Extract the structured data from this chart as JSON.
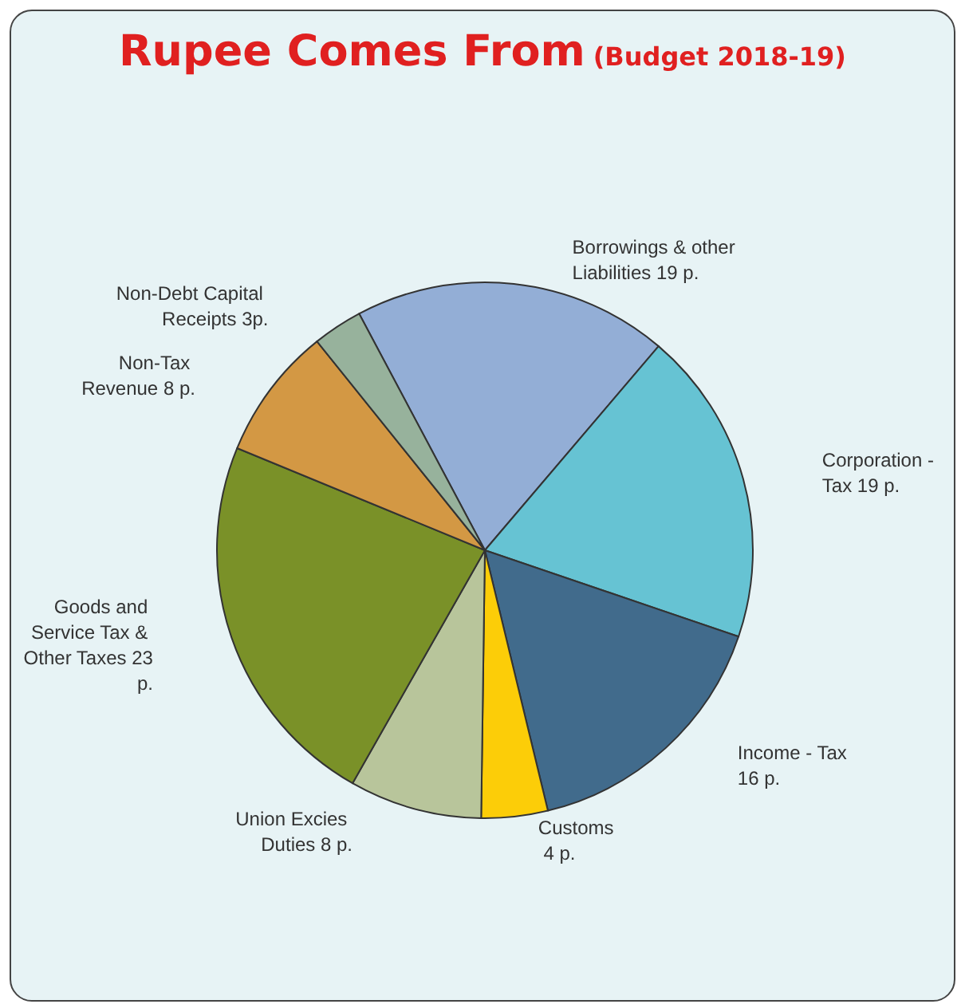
{
  "chart_data": {
    "type": "pie",
    "title": "Rupee Comes From",
    "subtitle": "(Budget 2018-19)",
    "categories": [
      "Borrowings & other Liabilities",
      "Corporation - Tax",
      "Income - Tax",
      "Customs",
      "Union Excies Duties",
      "Goods and Service Tax & Other Taxes",
      "Non-Tax Revenue",
      "Non-Debt Capital Receipts"
    ],
    "values": [
      19,
      19,
      16,
      4,
      8,
      23,
      8,
      3
    ],
    "value_labels": [
      "19 p.",
      "19 p.",
      "16 p.",
      "4 p.",
      "8 p.",
      "23 p.",
      "8 p.",
      "3p."
    ],
    "colors": [
      "#93aed6",
      "#66c3d3",
      "#416b8c",
      "#fccd08",
      "#b8c59b",
      "#7a9128",
      "#d39844",
      "#97b29c"
    ],
    "legend": false
  }
}
